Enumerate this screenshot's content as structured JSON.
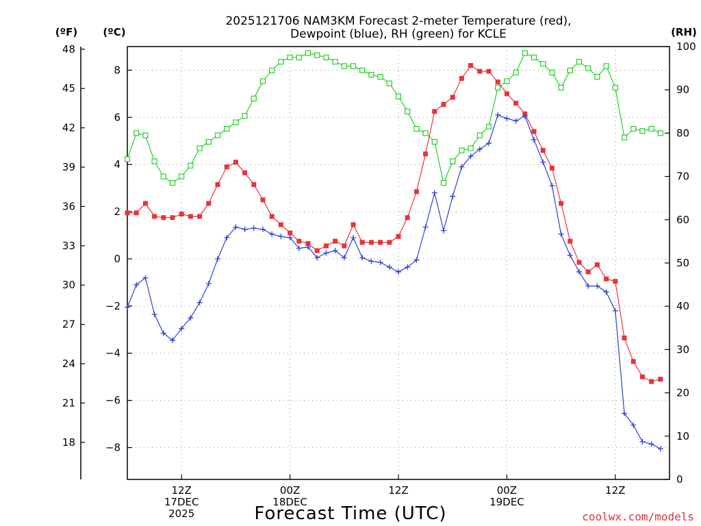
{
  "chart_data": {
    "type": "line",
    "title_lines": [
      "2025121706 NAM3KM Forecast 2-meter Temperature (red),",
      "Dewpoint (blue), RH (green) for KCLE"
    ],
    "units": {
      "fahrenheit": "(ºF)",
      "celsius": "(ºC)",
      "rh": "(RH)"
    },
    "xlabel": "Forecast Time (UTC)",
    "credit": "coolwx.com/models",
    "x_range_hours": [
      0,
      60
    ],
    "x_ticks": [
      {
        "hour": 6,
        "lines": [
          "12Z",
          "17DEC",
          "2025"
        ]
      },
      {
        "hour": 18,
        "lines": [
          "00Z",
          "18DEC"
        ]
      },
      {
        "hour": 30,
        "lines": [
          "12Z"
        ]
      },
      {
        "hour": 42,
        "lines": [
          "00Z",
          "19DEC"
        ]
      },
      {
        "hour": 54,
        "lines": [
          "12Z"
        ]
      }
    ],
    "ylim_celsius": [
      -9.35,
      9.0
    ],
    "ylim_rh": [
      0,
      100
    ],
    "y_ticks_celsius": [
      "8",
      "6",
      "4",
      "2",
      "0",
      "−2",
      "−4",
      "−6",
      "−8"
    ],
    "y_ticks_fahrenheit": [
      "48",
      "45",
      "42",
      "39",
      "36",
      "33",
      "30",
      "27",
      "24",
      "21",
      "18"
    ],
    "y_ticks_rh": [
      "100",
      "90",
      "80",
      "70",
      "60",
      "50",
      "40",
      "30",
      "20",
      "10",
      "0"
    ],
    "series": [
      {
        "name": "Temperature",
        "unit": "C",
        "color": "#e8333a",
        "marker": "filled-square",
        "values": [
          1.95,
          1.95,
          2.35,
          1.8,
          1.75,
          1.75,
          1.9,
          1.8,
          1.8,
          2.35,
          3.15,
          3.9,
          4.1,
          3.65,
          3.15,
          2.5,
          1.8,
          1.45,
          1.1,
          0.75,
          0.65,
          0.35,
          0.55,
          0.75,
          0.55,
          1.45,
          0.7,
          0.7,
          0.7,
          0.7,
          0.95,
          1.75,
          2.85,
          4.45,
          6.25,
          6.55,
          6.85,
          7.65,
          8.2,
          7.95,
          7.95,
          7.5,
          7.0,
          6.6,
          6.15,
          5.4,
          4.6,
          3.85,
          2.35,
          0.75,
          -0.15,
          -0.55,
          -0.25,
          -0.85,
          -0.95,
          -3.35,
          -4.35,
          -5.0,
          -5.2,
          -5.1
        ]
      },
      {
        "name": "Dewpoint",
        "unit": "C",
        "color": "#2c3fd7",
        "marker": "plus",
        "values": [
          -2.05,
          -1.1,
          -0.8,
          -2.35,
          -3.15,
          -3.45,
          -2.95,
          -2.5,
          -1.85,
          -1.05,
          0.0,
          0.9,
          1.35,
          1.25,
          1.3,
          1.25,
          1.05,
          0.95,
          0.9,
          0.45,
          0.5,
          0.05,
          0.25,
          0.35,
          0.05,
          0.9,
          0.05,
          -0.1,
          -0.15,
          -0.35,
          -0.55,
          -0.35,
          -0.05,
          1.35,
          2.8,
          1.2,
          2.65,
          3.9,
          4.35,
          4.65,
          4.9,
          6.1,
          5.95,
          5.85,
          6.05,
          5.05,
          4.1,
          3.1,
          1.05,
          0.15,
          -0.55,
          -1.15,
          -1.15,
          -1.4,
          -2.2,
          -6.55,
          -7.05,
          -7.75,
          -7.85,
          -8.05
        ]
      },
      {
        "name": "RH",
        "unit": "%",
        "color": "#22d022",
        "marker": "open-square",
        "values": [
          74,
          80,
          79.5,
          73.5,
          70,
          68.5,
          70,
          72.5,
          76.5,
          78,
          79.5,
          81,
          82.5,
          84,
          88,
          92,
          94.5,
          96.5,
          97.5,
          97.5,
          98.5,
          98,
          97.5,
          96.5,
          95.5,
          95.5,
          94.5,
          93.5,
          93,
          91.5,
          88.5,
          85,
          81,
          80,
          78,
          68.5,
          73.5,
          76,
          76.5,
          79.5,
          81.5,
          90.5,
          92,
          94,
          98.5,
          97.5,
          96,
          94,
          90.5,
          94.5,
          96.5,
          95,
          93,
          95.5,
          90.5,
          79,
          81,
          80.5,
          81,
          80
        ]
      }
    ]
  }
}
